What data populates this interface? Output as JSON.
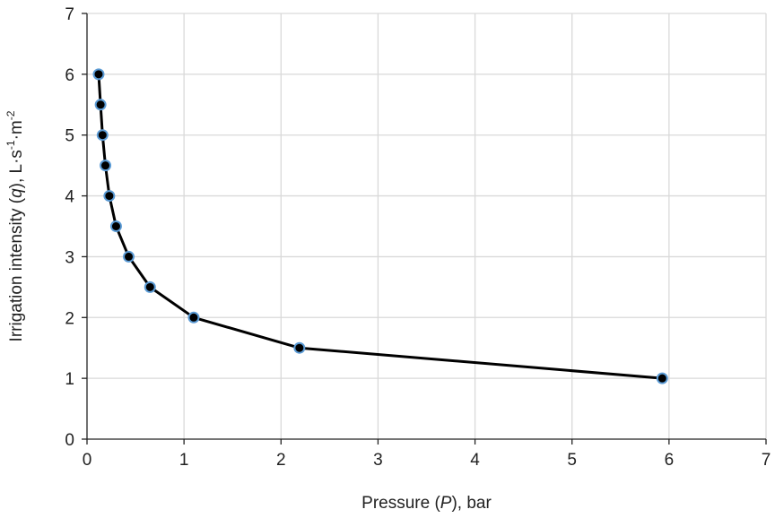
{
  "chart_data": {
    "type": "scatter",
    "title": "",
    "xlabel": {
      "prefix": "Pressure (",
      "var": "P",
      "suffix": "), bar"
    },
    "ylabel": {
      "prefix": "Irrigation intensity (",
      "var": "q",
      "middle": "), L·s",
      "sup1": "-1",
      "middle2": "·m",
      "sup2": "-2"
    },
    "xlim": [
      0,
      7
    ],
    "ylim": [
      0,
      7
    ],
    "xticks": [
      "0",
      "1",
      "2",
      "3",
      "4",
      "5",
      "6",
      "7"
    ],
    "yticks": [
      "0",
      "1",
      "2",
      "3",
      "4",
      "5",
      "6",
      "7"
    ],
    "grid": true,
    "series": [
      {
        "x": [
          0.12,
          0.14,
          0.16,
          0.19,
          0.23,
          0.3,
          0.43,
          0.65,
          1.1,
          2.19,
          5.93
        ],
        "y": [
          6.0,
          5.5,
          5.0,
          4.5,
          4.0,
          3.5,
          3.0,
          2.5,
          2.0,
          1.5,
          1.0
        ],
        "line_color": "#000000",
        "marker_fill": "#000000",
        "marker_edge": "#5b9bd5"
      }
    ]
  }
}
